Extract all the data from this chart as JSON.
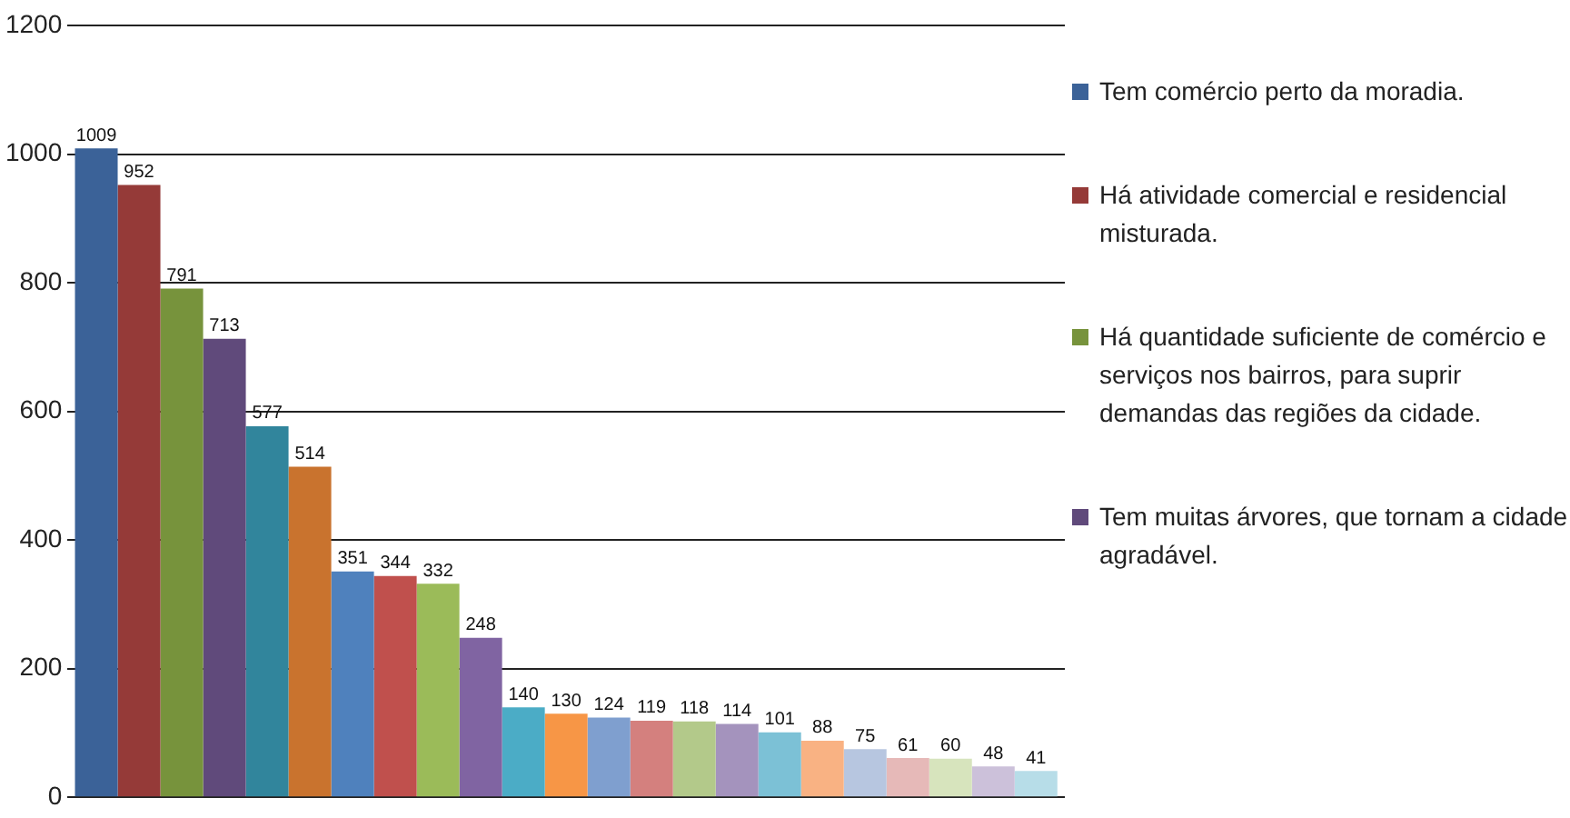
{
  "chart_data": {
    "type": "bar",
    "categories": [
      null
    ],
    "series": [
      {
        "name": "Tem comércio perto da moradia.",
        "color": "#3b6298",
        "values": [
          1009
        ]
      },
      {
        "name": "Há atividade comercial e residencial misturada.",
        "color": "#953a38",
        "values": [
          952
        ]
      },
      {
        "name": "Há quantidade suficiente de comércio e serviços nos bairros, para suprir demandas das regiões da cidade.",
        "color": "#77933c",
        "values": [
          791
        ]
      },
      {
        "name": "Tem muitas árvores, que tornam a cidade agradável.",
        "color": "#604a7b",
        "values": [
          713
        ]
      },
      {
        "color": "#31859c",
        "values": [
          577
        ]
      },
      {
        "color": "#c9732e",
        "values": [
          514
        ]
      },
      {
        "color": "#4f81bd",
        "values": [
          351
        ]
      },
      {
        "color": "#c0504d",
        "values": [
          344
        ]
      },
      {
        "color": "#9bbb59",
        "values": [
          332
        ]
      },
      {
        "color": "#8064a2",
        "values": [
          248
        ]
      },
      {
        "color": "#4bacc6",
        "values": [
          140
        ]
      },
      {
        "color": "#f79646",
        "values": [
          130
        ]
      },
      {
        "color": "#7f9fcf",
        "values": [
          124
        ]
      },
      {
        "color": "#d4807e",
        "values": [
          119
        ]
      },
      {
        "color": "#b3c98a",
        "values": [
          118
        ]
      },
      {
        "color": "#a493bd",
        "values": [
          114
        ]
      },
      {
        "color": "#7cc1d6",
        "values": [
          101
        ]
      },
      {
        "color": "#f9b283",
        "values": [
          88
        ]
      },
      {
        "color": "#b7c6e0",
        "values": [
          75
        ]
      },
      {
        "color": "#e6b9b8",
        "values": [
          61
        ]
      },
      {
        "color": "#d7e4bd",
        "values": [
          60
        ]
      },
      {
        "color": "#ccc1da",
        "values": [
          48
        ]
      },
      {
        "color": "#b7dde8",
        "values": [
          41
        ]
      }
    ],
    "ylim": [
      0,
      1200
    ],
    "yticks": [
      0,
      200,
      400,
      600,
      800,
      1000,
      1200
    ],
    "grid": "y",
    "legend": "right",
    "data_labels": true
  }
}
